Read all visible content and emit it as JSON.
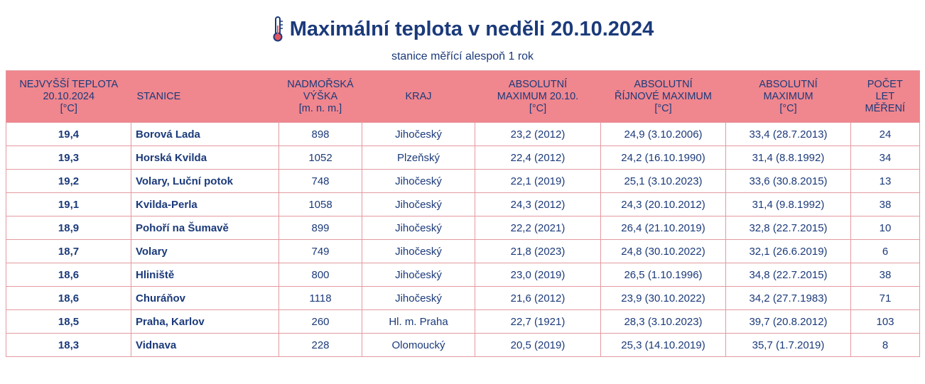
{
  "title": "Maximální teplota v neděli 20.10.2024",
  "subtitle": "stanice měřící alespoň 1 rok",
  "colors": {
    "header_bg": "#f0868e",
    "text": "#1b3a7a",
    "border": "#e39aa0"
  },
  "icon": "thermometer-icon",
  "headers": [
    [
      "NEJVYŠŠÍ TEPLOTA",
      "20.10.2024",
      "[°C]"
    ],
    [
      "STANICE"
    ],
    [
      "NADMOŘSKÁ",
      "VÝŠKA",
      "[m. n. m.]"
    ],
    [
      "KRAJ"
    ],
    [
      "ABSOLUTNÍ",
      "MAXIMUM 20.10.",
      "[°C]"
    ],
    [
      "ABSOLUTNÍ",
      "ŘÍJNOVÉ MAXIMUM",
      "[°C]"
    ],
    [
      "ABSOLUTNÍ",
      "MAXIMUM",
      "[°C]"
    ],
    [
      "POČET",
      "LET",
      "MĚŘENÍ"
    ]
  ],
  "rows": [
    [
      "19,4",
      "Borová Lada",
      "898",
      "Jihočeský",
      "23,2 (2012)",
      "24,9 (3.10.2006)",
      "33,4 (28.7.2013)",
      "24"
    ],
    [
      "19,3",
      "Horská Kvilda",
      "1052",
      "Plzeňský",
      "22,4 (2012)",
      "24,2 (16.10.1990)",
      "31,4 (8.8.1992)",
      "34"
    ],
    [
      "19,2",
      "Volary, Luční potok",
      "748",
      "Jihočeský",
      "22,1 (2019)",
      "25,1 (3.10.2023)",
      "33,6 (30.8.2015)",
      "13"
    ],
    [
      "19,1",
      "Kvilda-Perla",
      "1058",
      "Jihočeský",
      "24,3 (2012)",
      "24,3 (20.10.2012)",
      "31,4 (9.8.1992)",
      "38"
    ],
    [
      "18,9",
      "Pohoří na Šumavě",
      "899",
      "Jihočeský",
      "22,2 (2021)",
      "26,4 (21.10.2019)",
      "32,8 (22.7.2015)",
      "10"
    ],
    [
      "18,7",
      "Volary",
      "749",
      "Jihočeský",
      "21,8 (2023)",
      "24,8 (30.10.2022)",
      "32,1 (26.6.2019)",
      "6"
    ],
    [
      "18,6",
      "Hliniště",
      "800",
      "Jihočeský",
      "23,0 (2019)",
      "26,5 (1.10.1996)",
      "34,8 (22.7.2015)",
      "38"
    ],
    [
      "18,6",
      "Churáňov",
      "1118",
      "Jihočeský",
      "21,6 (2012)",
      "23,9 (30.10.2022)",
      "34,2 (27.7.1983)",
      "71"
    ],
    [
      "18,5",
      "Praha, Karlov",
      "260",
      "Hl. m. Praha",
      "22,7 (1921)",
      "28,3 (3.10.2023)",
      "39,7 (20.8.2012)",
      "103"
    ],
    [
      "18,3",
      "Vidnava",
      "228",
      "Olomoucký",
      "20,5 (2019)",
      "25,3 (14.10.2019)",
      "35,7 (1.7.2019)",
      "8"
    ]
  ]
}
